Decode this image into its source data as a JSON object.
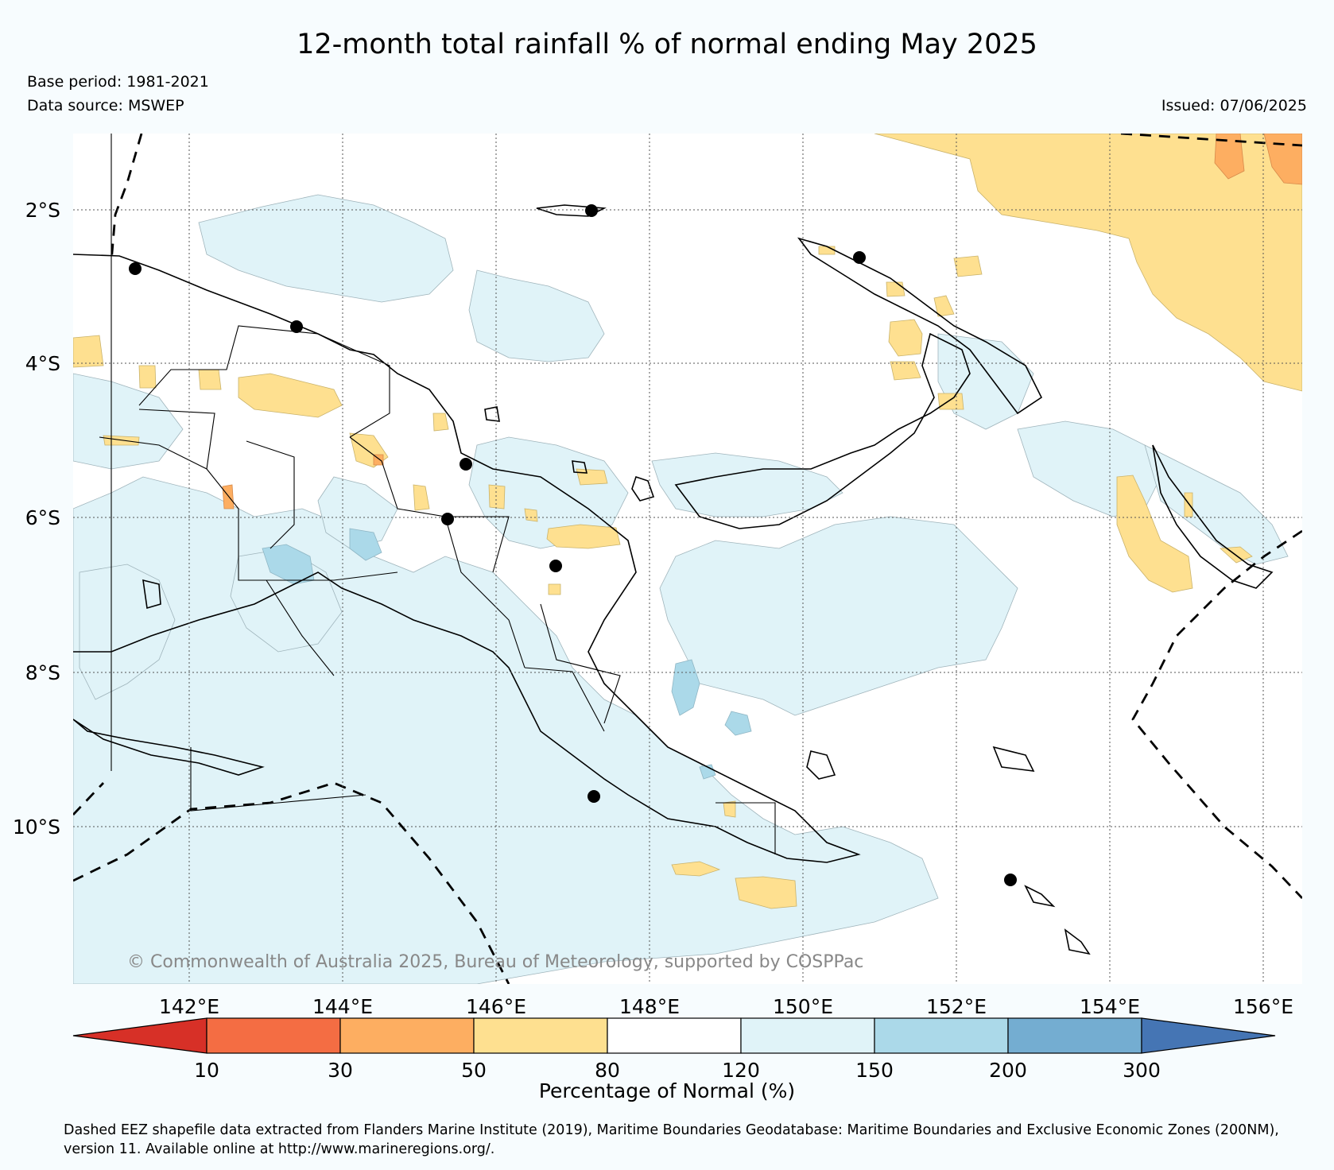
{
  "title": "12-month total rainfall % of normal ending May 2025",
  "meta": {
    "base_period": "Base period: 1981-2021",
    "data_source": "Data source: MSWEP",
    "issued": "Issued: 07/06/2025"
  },
  "map": {
    "latitude_labels": [
      "2°S",
      "4°S",
      "6°S",
      "8°S",
      "10°S"
    ],
    "longitude_labels": [
      "142°E",
      "144°E",
      "146°E",
      "148°E",
      "150°E",
      "152°E",
      "154°E",
      "156°E"
    ],
    "copyright": "© Commonwealth of Australia 2025, Bureau of Meteorology, supported by COSPPac"
  },
  "colorbar": {
    "ticks": [
      "10",
      "30",
      "50",
      "80",
      "120",
      "150",
      "200",
      "300"
    ],
    "label": "Percentage of Normal (%)",
    "colors": [
      "#d73027",
      "#f46d43",
      "#fdae61",
      "#fee090",
      "#ffffff",
      "#e0f3f8",
      "#abd9e9",
      "#74add1",
      "#4575b4"
    ]
  },
  "footer": "Dashed EEZ shapefile data extracted from Flanders Marine Institute (2019), Maritime Boundaries Geodatabase: Maritime Boundaries and Exclusive Economic Zones (200NM), version 11. Available online at http://www.marineregions.org/."
}
